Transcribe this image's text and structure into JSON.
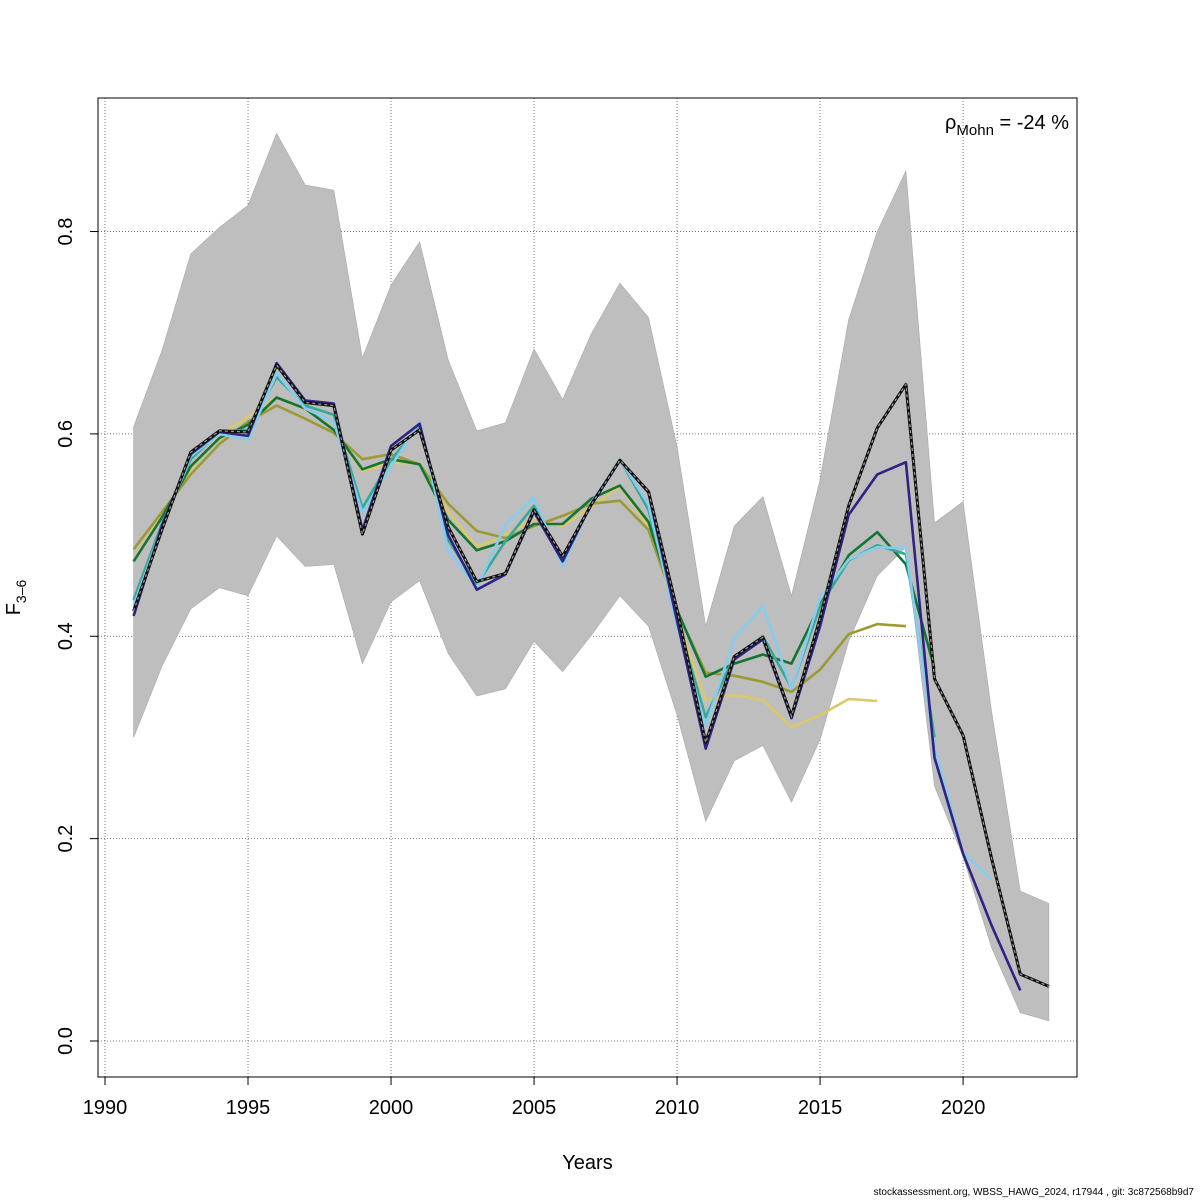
{
  "chart_data": {
    "type": "line",
    "xlabel": "Years",
    "ylabel": "F",
    "ylabel_sub": "3–6",
    "xlim": [
      1990,
      2024
    ],
    "ylim": [
      0,
      0.93
    ],
    "x_ticks": [
      1990,
      1995,
      2000,
      2005,
      2010,
      2015,
      2020
    ],
    "y_ticks": [
      0.0,
      0.2,
      0.4,
      0.6,
      0.8
    ],
    "y_tick_labels": [
      "0.0",
      "0.2",
      "0.4",
      "0.6",
      "0.8"
    ],
    "grid": true,
    "annotation": {
      "rho": "ρ",
      "sub": "Mohn",
      "text": " = -24 %",
      "position": "top-right"
    },
    "confidence_band": {
      "x": [
        1991,
        1992,
        1993,
        1994,
        1995,
        1996,
        1997,
        1998,
        1999,
        2000,
        2001,
        2002,
        2003,
        2004,
        2005,
        2006,
        2007,
        2008,
        2009,
        2010,
        2011,
        2012,
        2013,
        2014,
        2015,
        2016,
        2017,
        2018,
        2019,
        2020,
        2021,
        2022,
        2023
      ],
      "upper": [
        0.607,
        0.683,
        0.778,
        0.804,
        0.826,
        0.897,
        0.846,
        0.841,
        0.675,
        0.747,
        0.79,
        0.673,
        0.603,
        0.611,
        0.684,
        0.634,
        0.699,
        0.749,
        0.715,
        0.587,
        0.41,
        0.509,
        0.538,
        0.44,
        0.555,
        0.713,
        0.8,
        0.86,
        0.512,
        0.533,
        0.325,
        0.148,
        0.136
      ],
      "lower": [
        0.3,
        0.371,
        0.427,
        0.448,
        0.44,
        0.499,
        0.469,
        0.471,
        0.373,
        0.434,
        0.455,
        0.383,
        0.341,
        0.348,
        0.395,
        0.365,
        0.401,
        0.44,
        0.41,
        0.322,
        0.217,
        0.277,
        0.292,
        0.236,
        0.298,
        0.395,
        0.46,
        0.488,
        0.252,
        0.182,
        0.092,
        0.028,
        0.02
      ],
      "color": "#bebebe"
    },
    "x": [
      1991,
      1992,
      1993,
      1994,
      1995,
      1996,
      1997,
      1998,
      1999,
      2000,
      2001,
      2002,
      2003,
      2004,
      2005,
      2006,
      2007,
      2008,
      2009,
      2010,
      2011,
      2012,
      2013,
      2014,
      2015,
      2016,
      2017,
      2018,
      2019,
      2020,
      2021,
      2022,
      2023
    ],
    "series": [
      {
        "color": "#111111",
        "dashed_overlay": true,
        "values": [
          0.425,
          0.506,
          0.582,
          0.603,
          0.602,
          0.668,
          0.631,
          0.628,
          0.501,
          0.584,
          0.604,
          0.508,
          0.454,
          0.462,
          0.525,
          0.479,
          0.53,
          0.574,
          0.543,
          0.426,
          0.295,
          0.38,
          0.399,
          0.321,
          0.418,
          0.529,
          0.606,
          0.649,
          0.358,
          0.302,
          0.18,
          0.066,
          0.054
        ]
      },
      {
        "color": "#2e2383",
        "values": [
          0.42,
          0.51,
          0.58,
          0.602,
          0.598,
          0.67,
          0.633,
          0.63,
          0.505,
          0.588,
          0.61,
          0.5,
          0.446,
          0.461,
          0.523,
          0.474,
          0.531,
          0.574,
          0.542,
          0.415,
          0.289,
          0.377,
          0.397,
          0.319,
          0.41,
          0.52,
          0.56,
          0.572,
          0.28,
          0.185,
          0.114,
          0.05,
          null
        ]
      },
      {
        "color": "#86ccec",
        "values": [
          0.43,
          0.508,
          0.578,
          0.6,
          0.594,
          0.66,
          0.625,
          0.612,
          0.522,
          0.568,
          0.612,
          0.485,
          0.448,
          0.51,
          0.537,
          0.469,
          0.532,
          0.575,
          0.53,
          0.41,
          0.311,
          0.398,
          0.43,
          0.348,
          0.438,
          0.476,
          0.488,
          0.487,
          0.29,
          0.186,
          0.16,
          null,
          null
        ]
      },
      {
        "color": "#36a898",
        "values": [
          0.436,
          0.512,
          0.575,
          0.602,
          0.604,
          0.656,
          0.628,
          0.619,
          0.527,
          0.574,
          0.609,
          0.495,
          0.451,
          0.494,
          0.529,
          0.475,
          0.531,
          0.575,
          0.525,
          0.416,
          0.32,
          0.38,
          0.4,
          0.349,
          0.43,
          0.475,
          0.49,
          0.481,
          0.3,
          null,
          null,
          null,
          null
        ]
      },
      {
        "color": "#137535",
        "values": [
          0.474,
          0.518,
          0.568,
          0.596,
          0.609,
          0.636,
          0.625,
          0.604,
          0.565,
          0.575,
          0.57,
          0.515,
          0.485,
          0.494,
          0.511,
          0.511,
          0.536,
          0.549,
          0.513,
          0.426,
          0.36,
          0.373,
          0.382,
          0.373,
          0.431,
          0.48,
          0.503,
          0.471,
          0.368,
          null,
          null,
          null,
          null
        ]
      },
      {
        "color": "#9b9a34",
        "values": [
          0.486,
          0.523,
          0.56,
          0.59,
          0.612,
          0.628,
          0.615,
          0.601,
          0.575,
          0.58,
          0.57,
          0.531,
          0.504,
          0.497,
          0.509,
          0.519,
          0.531,
          0.534,
          0.505,
          0.425,
          0.364,
          0.361,
          0.355,
          0.345,
          0.367,
          0.402,
          0.412,
          0.41,
          null,
          null,
          null,
          null,
          null
        ]
      },
      {
        "color": "#dcc86c",
        "values": [
          0.475,
          0.52,
          0.565,
          0.598,
          0.617,
          0.636,
          0.624,
          0.605,
          0.563,
          0.571,
          0.571,
          0.523,
          0.488,
          0.5,
          0.516,
          0.509,
          0.528,
          0.548,
          0.509,
          0.418,
          0.337,
          0.342,
          0.337,
          0.31,
          0.322,
          0.338,
          0.336,
          null,
          null,
          null,
          null,
          null,
          null
        ]
      }
    ]
  },
  "footer": "stockassessment.org, WBSS_HAWG_2024, r17944 , git: 3c872568b9d7"
}
